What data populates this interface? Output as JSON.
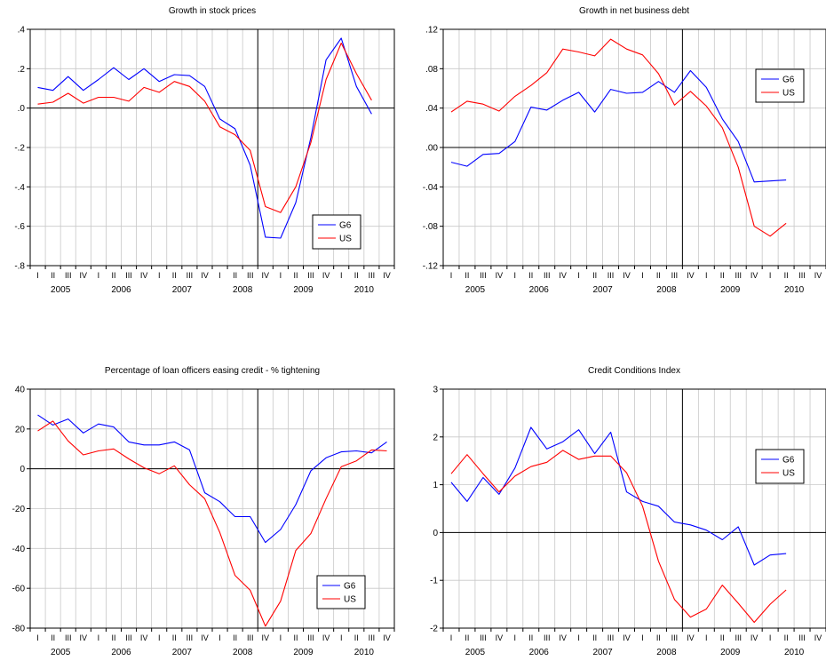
{
  "colors": {
    "G6": "#0000ff",
    "US": "#ff0000",
    "grid": "#c8c8c8",
    "axis": "#000000"
  },
  "quarter_labels": [
    "I",
    "II",
    "III",
    "IV"
  ],
  "chart_data": [
    {
      "type": "line",
      "title": "Growth in stock prices",
      "years": [
        "2005",
        "2006",
        "2007",
        "2008",
        "2009",
        "2010"
      ],
      "x_start": 2004.75,
      "ylim": [
        -0.8,
        0.4
      ],
      "yticks": [
        0.4,
        0.2,
        0.0,
        -0.2,
        -0.4,
        -0.6,
        -0.8
      ],
      "ytick_labels": [
        ".4",
        ".2",
        ".0",
        "-.2",
        "-.4",
        "-.6",
        "-.8"
      ],
      "zero_line": 0,
      "event_line": "2008 Q3",
      "legend": "bottom-right",
      "series": [
        {
          "name": "G6",
          "color": "#0000ff",
          "values": [
            0.105,
            0.09,
            0.16,
            0.09,
            0.145,
            0.205,
            0.145,
            0.2,
            0.135,
            0.17,
            0.165,
            0.11,
            -0.055,
            -0.105,
            -0.29,
            -0.655,
            -0.66,
            -0.48,
            -0.15,
            0.245,
            0.355,
            0.11,
            -0.03
          ]
        },
        {
          "name": "US",
          "color": "#ff0000",
          "values": [
            0.02,
            0.03,
            0.075,
            0.025,
            0.055,
            0.055,
            0.035,
            0.105,
            0.08,
            0.135,
            0.11,
            0.035,
            -0.095,
            -0.135,
            -0.215,
            -0.5,
            -0.53,
            -0.4,
            -0.175,
            0.145,
            0.33,
            0.175,
            0.04
          ]
        }
      ]
    },
    {
      "type": "line",
      "title": "Growth in net business debt",
      "years": [
        "2005",
        "2006",
        "2007",
        "2008",
        "2009",
        "2010"
      ],
      "x_start": 2004.75,
      "ylim": [
        -0.12,
        0.12
      ],
      "yticks": [
        0.12,
        0.08,
        0.04,
        0.0,
        -0.04,
        -0.08,
        -0.12
      ],
      "ytick_labels": [
        ".12",
        ".08",
        ".04",
        ".00",
        "-.04",
        "-.08",
        "-.12"
      ],
      "zero_line": 0,
      "event_line": "2008 Q3",
      "legend": "top-right",
      "series": [
        {
          "name": "G6",
          "color": "#0000ff",
          "values": [
            -0.015,
            -0.019,
            -0.007,
            -0.006,
            0.006,
            0.041,
            0.038,
            0.048,
            0.056,
            0.036,
            0.059,
            0.055,
            0.056,
            0.067,
            0.056,
            0.078,
            0.061,
            0.029,
            0.006,
            -0.035,
            -0.034,
            -0.033
          ]
        },
        {
          "name": "US",
          "color": "#ff0000",
          "values": [
            0.036,
            0.047,
            0.044,
            0.037,
            0.052,
            0.063,
            0.076,
            0.1,
            0.097,
            0.093,
            0.11,
            0.1,
            0.094,
            0.075,
            0.043,
            0.057,
            0.042,
            0.02,
            -0.02,
            -0.08,
            -0.09,
            -0.077
          ]
        }
      ]
    },
    {
      "type": "line",
      "title": "Percentage of loan officers easing credit - % tightening",
      "years": [
        "2005",
        "2006",
        "2007",
        "2008",
        "2009",
        "2010"
      ],
      "x_start": 2004.75,
      "ylim": [
        -80,
        40
      ],
      "yticks": [
        40,
        20,
        0,
        -20,
        -40,
        -60,
        -80
      ],
      "ytick_labels": [
        "40",
        "20",
        "0",
        "-20",
        "-40",
        "-60",
        "-80"
      ],
      "zero_line": 0,
      "event_line": "2008 Q3",
      "legend": "bottom-right",
      "series": [
        {
          "name": "G6",
          "color": "#0000ff",
          "values": [
            27,
            22,
            25,
            18,
            22.5,
            21,
            13.5,
            12,
            12,
            13.5,
            9.5,
            -12,
            -16.5,
            -24,
            -24,
            -37,
            -30.5,
            -18,
            -1,
            5.5,
            8.5,
            9,
            8,
            13.5
          ]
        },
        {
          "name": "US",
          "color": "#ff0000",
          "values": [
            19,
            24,
            14,
            7,
            9,
            10,
            5,
            0.5,
            -2.5,
            1.5,
            -8,
            -15,
            -32,
            -53.5,
            -61,
            -79,
            -66.5,
            -41,
            -32.5,
            -15,
            1,
            4,
            9.5,
            9
          ]
        }
      ]
    },
    {
      "type": "line",
      "title": "Credit Conditions Index",
      "years": [
        "2005",
        "2006",
        "2007",
        "2008",
        "2009",
        "2010"
      ],
      "x_start": 2004.75,
      "ylim": [
        -2,
        3
      ],
      "yticks": [
        3,
        2,
        1,
        0,
        -1,
        -2
      ],
      "ytick_labels": [
        "3",
        "2",
        "1",
        "0",
        "-1",
        "-2"
      ],
      "zero_line": 0,
      "event_line": "2008 Q3",
      "legend": "top-right",
      "series": [
        {
          "name": "G6",
          "color": "#0000ff",
          "values": [
            1.05,
            0.65,
            1.15,
            0.8,
            1.35,
            2.2,
            1.75,
            1.9,
            2.15,
            1.65,
            2.1,
            0.85,
            0.65,
            0.55,
            0.22,
            0.16,
            0.05,
            -0.15,
            0.12,
            -0.68,
            -0.47,
            -0.44
          ]
        },
        {
          "name": "US",
          "color": "#ff0000",
          "values": [
            1.23,
            1.63,
            1.23,
            0.85,
            1.18,
            1.38,
            1.47,
            1.72,
            1.53,
            1.6,
            1.6,
            1.25,
            0.55,
            -0.6,
            -1.4,
            -1.77,
            -1.6,
            -1.1,
            -1.48,
            -1.88,
            -1.5,
            -1.2
          ]
        }
      ]
    }
  ]
}
